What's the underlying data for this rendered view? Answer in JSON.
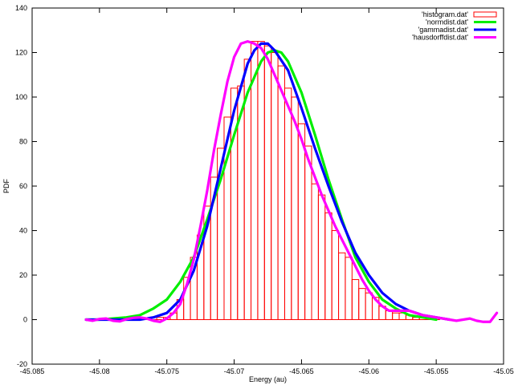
{
  "chart_data": {
    "type": "bar",
    "title": "",
    "xlabel": "Energy (au)",
    "ylabel": "PDF",
    "xlim": [
      -45.085,
      -45.05
    ],
    "ylim": [
      -20,
      140
    ],
    "xticks": [
      -45.085,
      -45.08,
      -45.075,
      -45.07,
      -45.065,
      -45.06,
      -45.055,
      -45.05
    ],
    "xtick_labels": [
      "-45.085",
      "-45.08",
      "-45.075",
      "-45.07",
      "-45.065",
      "-45.06",
      "-45.055",
      "-45.05"
    ],
    "yticks": [
      -20,
      0,
      20,
      40,
      60,
      80,
      100,
      120,
      140
    ],
    "ytick_labels": [
      "-20",
      "0",
      "20",
      "40",
      "60",
      "80",
      "100",
      "120",
      "140"
    ],
    "grid": false,
    "legend_position": "top-right",
    "legend": [
      {
        "label": "'histogram.dat'",
        "color": "#ff0000",
        "style": "box"
      },
      {
        "label": "'normdist.dat'",
        "color": "#00ee00",
        "style": "line"
      },
      {
        "label": "'gammadist.dat'",
        "color": "#0000ff",
        "style": "line"
      },
      {
        "label": "'hausdorffdist.dat'",
        "color": "#ff00ff",
        "style": "line"
      }
    ],
    "histogram": {
      "name": "'histogram.dat'",
      "color": "#ff0000",
      "bin_width": 0.0005,
      "x": [
        -45.0765,
        -45.076,
        -45.0755,
        -45.075,
        -45.0745,
        -45.074,
        -45.0735,
        -45.073,
        -45.0725,
        -45.072,
        -45.0715,
        -45.071,
        -45.0705,
        -45.07,
        -45.0695,
        -45.069,
        -45.0685,
        -45.068,
        -45.0675,
        -45.067,
        -45.0665,
        -45.066,
        -45.0655,
        -45.065,
        -45.0645,
        -45.064,
        -45.0635,
        -45.063,
        -45.0625,
        -45.062,
        -45.0615,
        -45.061,
        -45.0605,
        -45.06,
        -45.0595,
        -45.059,
        -45.0585,
        -45.058,
        -45.0575,
        -45.057,
        -45.0565,
        -45.056,
        -45.0555,
        -45.055
      ],
      "values": [
        0,
        0,
        1,
        1,
        3,
        9,
        19,
        28,
        38,
        51,
        64,
        77,
        91,
        104,
        105,
        117,
        125,
        125,
        123,
        120,
        114,
        104,
        100,
        88,
        78,
        61,
        56,
        48,
        40,
        30,
        28,
        18,
        14,
        12,
        10,
        6,
        4,
        3,
        3,
        2,
        1,
        1,
        1,
        0
      ]
    },
    "series": [
      {
        "name": "'normdist.dat'",
        "color": "#00ee00",
        "x": [
          -45.081,
          -45.08,
          -45.079,
          -45.078,
          -45.077,
          -45.076,
          -45.075,
          -45.074,
          -45.073,
          -45.072,
          -45.071,
          -45.07,
          -45.069,
          -45.068,
          -45.0675,
          -45.067,
          -45.0665,
          -45.066,
          -45.065,
          -45.064,
          -45.063,
          -45.062,
          -45.061,
          -45.06,
          -45.059,
          -45.058,
          -45.057,
          -45.056,
          -45.055
        ],
        "values": [
          0,
          0,
          0.5,
          1,
          2,
          5,
          9,
          17,
          28,
          45,
          63,
          83,
          102,
          116,
          120,
          121,
          120,
          116,
          102,
          83,
          63,
          45,
          28,
          17,
          9,
          5,
          2,
          1,
          0
        ]
      },
      {
        "name": "'gammadist.dat'",
        "color": "#0000ff",
        "x": [
          -45.081,
          -45.079,
          -45.077,
          -45.076,
          -45.075,
          -45.074,
          -45.073,
          -45.072,
          -45.071,
          -45.07,
          -45.069,
          -45.0685,
          -45.068,
          -45.0675,
          -45.067,
          -45.066,
          -45.065,
          -45.064,
          -45.063,
          -45.062,
          -45.061,
          -45.06,
          -45.059,
          -45.058,
          -45.057,
          -45.056,
          -45.055,
          -45.054
        ],
        "values": [
          0,
          0,
          0,
          1,
          3,
          9,
          22,
          42,
          68,
          94,
          115,
          121,
          124,
          124,
          121,
          112,
          95,
          77,
          60,
          44,
          30,
          20,
          12,
          7,
          4,
          2,
          1,
          0
        ]
      },
      {
        "name": "'hausdorffdist.dat'",
        "color": "#ff00ff",
        "x": [
          -45.081,
          -45.0805,
          -45.08,
          -45.0795,
          -45.079,
          -45.0785,
          -45.078,
          -45.0775,
          -45.077,
          -45.0765,
          -45.076,
          -45.0755,
          -45.075,
          -45.0745,
          -45.074,
          -45.0735,
          -45.073,
          -45.0725,
          -45.072,
          -45.0715,
          -45.071,
          -45.0705,
          -45.07,
          -45.0695,
          -45.069,
          -45.0685,
          -45.068,
          -45.0675,
          -45.067,
          -45.0665,
          -45.066,
          -45.0655,
          -45.065,
          -45.0645,
          -45.064,
          -45.0635,
          -45.063,
          -45.0625,
          -45.062,
          -45.0615,
          -45.061,
          -45.0605,
          -45.06,
          -45.0595,
          -45.059,
          -45.0585,
          -45.058,
          -45.0575,
          -45.057,
          -45.0565,
          -45.056,
          -45.0555,
          -45.055,
          -45.0545,
          -45.054,
          -45.0535,
          -45.053,
          -45.0525,
          -45.052,
          -45.0515,
          -45.051,
          -45.0505
        ],
        "values": [
          0,
          -0.5,
          0.3,
          0.5,
          -0.5,
          -0.8,
          0.2,
          0.8,
          1,
          0.5,
          -0.5,
          -1,
          0.5,
          3,
          7,
          16,
          27,
          42,
          58,
          76,
          92,
          107,
          118,
          124,
          125,
          124,
          122,
          117,
          110,
          103,
          96,
          89,
          81,
          72,
          64,
          56,
          49,
          42,
          36,
          30,
          24,
          18,
          13,
          9,
          6,
          4,
          4,
          4,
          4,
          3,
          2,
          1.5,
          1,
          0.5,
          0,
          -0.5,
          0,
          0.5,
          -0.5,
          -1,
          -1,
          3
        ]
      }
    ]
  }
}
